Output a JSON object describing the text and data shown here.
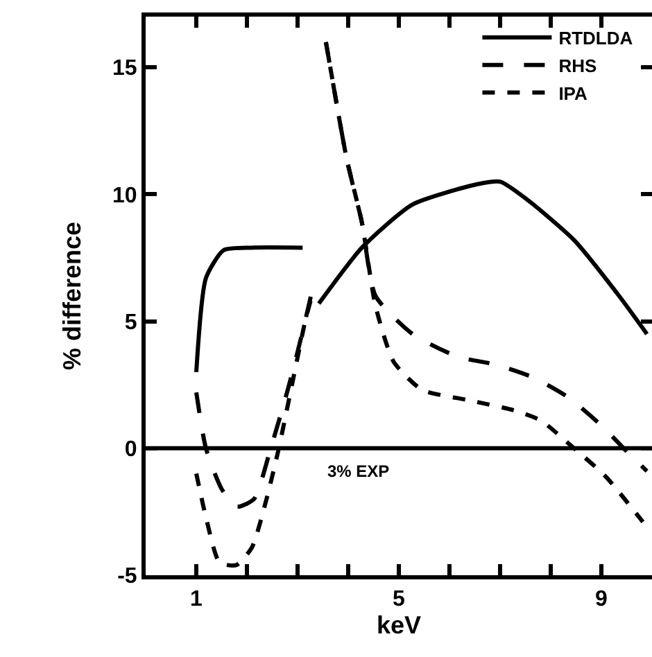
{
  "chart_data": {
    "type": "line",
    "xlabel": "keV",
    "ylabel": "% difference",
    "xlim": [
      0,
      10
    ],
    "ylim": [
      -5,
      17
    ],
    "xticks": [
      1,
      {
        "value": 2,
        "label": null
      },
      {
        "value": 3,
        "label": null
      },
      {
        "value": 4,
        "label": null
      },
      5,
      {
        "value": 6,
        "label": null
      },
      {
        "value": 7,
        "label": null
      },
      {
        "value": 8,
        "label": null
      },
      9
    ],
    "yticks": [
      -5,
      0,
      5,
      10,
      15
    ],
    "grid": false,
    "legend": "top right",
    "marker": "none",
    "ref_lines": [
      {
        "axis": "y",
        "value": 0,
        "label": "3% EXP",
        "color": "#000000",
        "line_style": "solid"
      }
    ],
    "series": [
      {
        "name": "RTDLDA",
        "color": "#000000",
        "line_style": "solid",
        "x": [
          1,
          1.19,
          1.54,
          2.09,
          3.1,
          3.25,
          3.42,
          4.27,
          5.27,
          6.55,
          7.0,
          7.53,
          8.46,
          9.35,
          9.9
        ],
        "values": [
          3.0,
          6.7,
          7.8,
          7.9,
          7.9,
          null,
          5.7,
          7.9,
          9.6,
          10.4,
          10.5,
          9.8,
          8.2,
          6.0,
          4.5
        ]
      },
      {
        "name": "RHS",
        "color": "#000000",
        "line_style": "dashed",
        "x": [
          1,
          1.19,
          1.5,
          1.8,
          2.14,
          2.47,
          2.82,
          3.1,
          3.31,
          3.45,
          3.56,
          3.97,
          4.27,
          4.54,
          5.27,
          6.17,
          6.9,
          7.64,
          8.35,
          9.0,
          9.44,
          9.9
        ],
        "values": [
          2.2,
          0,
          -1.6,
          -2.3,
          -2.0,
          0,
          2.4,
          4.6,
          6.4,
          null,
          16.0,
          11.4,
          8.9,
          6.0,
          4.5,
          3.6,
          3.3,
          2.8,
          2.0,
          0.9,
          0,
          -0.9
        ]
      },
      {
        "name": "IPA",
        "color": "#000000",
        "line_style": "dashed",
        "x": [
          1,
          1.2,
          1.46,
          1.79,
          2.1,
          2.4,
          2.63,
          2.9,
          3.15,
          3.31,
          3.45,
          3.56,
          3.97,
          4.27,
          4.54,
          4.9,
          5.46,
          6.36,
          7.26,
          7.8,
          8.46,
          9.08,
          9.82
        ],
        "values": [
          -1.0,
          -2.8,
          -4.5,
          -4.6,
          -3.9,
          -1.9,
          0,
          2.6,
          5.0,
          6.2,
          null,
          16.0,
          11.4,
          8.9,
          5.6,
          3.4,
          2.3,
          1.9,
          1.5,
          1.1,
          0,
          -1.1,
          -2.9
        ]
      }
    ]
  }
}
